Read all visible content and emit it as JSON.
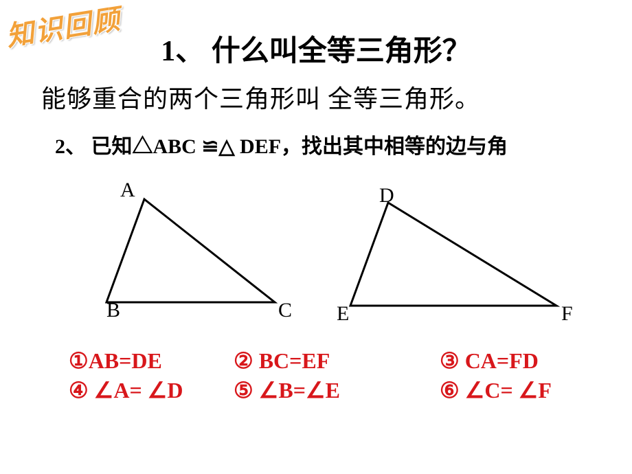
{
  "badge": "知识回顾",
  "title": "1、 什么叫全等三角形？",
  "definition": "能够重合的两个三角形叫 全等三角形。",
  "q2": "2、 已知△ABC ≌△ DEF，找出其中相等的边与角",
  "labels": {
    "A": "A",
    "B": "B",
    "C": "C",
    "D": "D",
    "E": "E",
    "F": "F"
  },
  "answers": {
    "r1c1": "①AB=DE",
    "r1c2": "② BC=EF",
    "r1c3": "③ CA=FD",
    "r2c1": "④ ∠A= ∠D",
    "r2c2": "⑤  ∠B=∠E",
    "r2c3": "⑥ ∠C= ∠F"
  },
  "style": {
    "badge_color": "#f2a13a",
    "answer_color": "#d8171b",
    "tri_stroke": "#000000",
    "tri_stroke_width": 3,
    "tri1": {
      "A": [
        210,
        30
      ],
      "B": [
        155,
        180
      ],
      "C": [
        400,
        180
      ]
    },
    "tri2": {
      "D": [
        565,
        35
      ],
      "E": [
        510,
        185
      ],
      "F": [
        810,
        185
      ]
    }
  }
}
